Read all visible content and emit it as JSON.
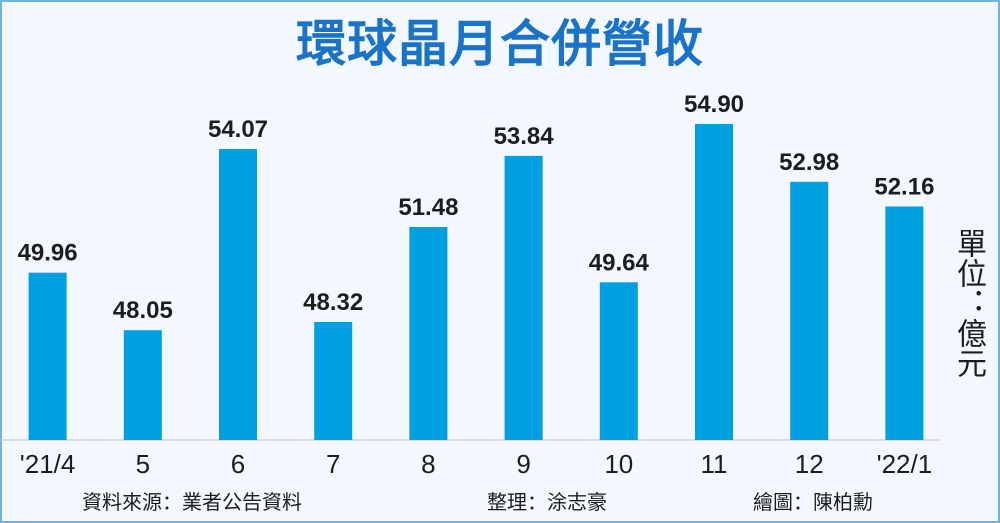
{
  "title": "環球晶月合併營收",
  "unit_label": "單位：億元",
  "footer": {
    "source": "資料來源：業者公告資料",
    "compiler": "整理：涂志豪",
    "artist": "繪圖：陳柏勳"
  },
  "colors": {
    "bar": "#00a0e0",
    "title": "#1a73c6",
    "frame_border": "#6fb3de",
    "background": "#f2f8fd"
  },
  "chart_data": {
    "type": "bar",
    "title": "環球晶月合併營收",
    "categories": [
      "'21/4",
      "5",
      "6",
      "7",
      "8",
      "9",
      "10",
      "11",
      "12",
      "'22/1"
    ],
    "values": [
      49.96,
      48.05,
      54.07,
      48.32,
      51.48,
      53.84,
      49.64,
      54.9,
      52.98,
      52.16
    ],
    "value_labels": [
      "49.96",
      "48.05",
      "54.07",
      "48.32",
      "51.48",
      "53.84",
      "49.64",
      "54.90",
      "52.98",
      "52.16"
    ],
    "ylabel": "單位：億元",
    "ylim": [
      44.4,
      55.3
    ],
    "grid": false,
    "legend": "none"
  }
}
